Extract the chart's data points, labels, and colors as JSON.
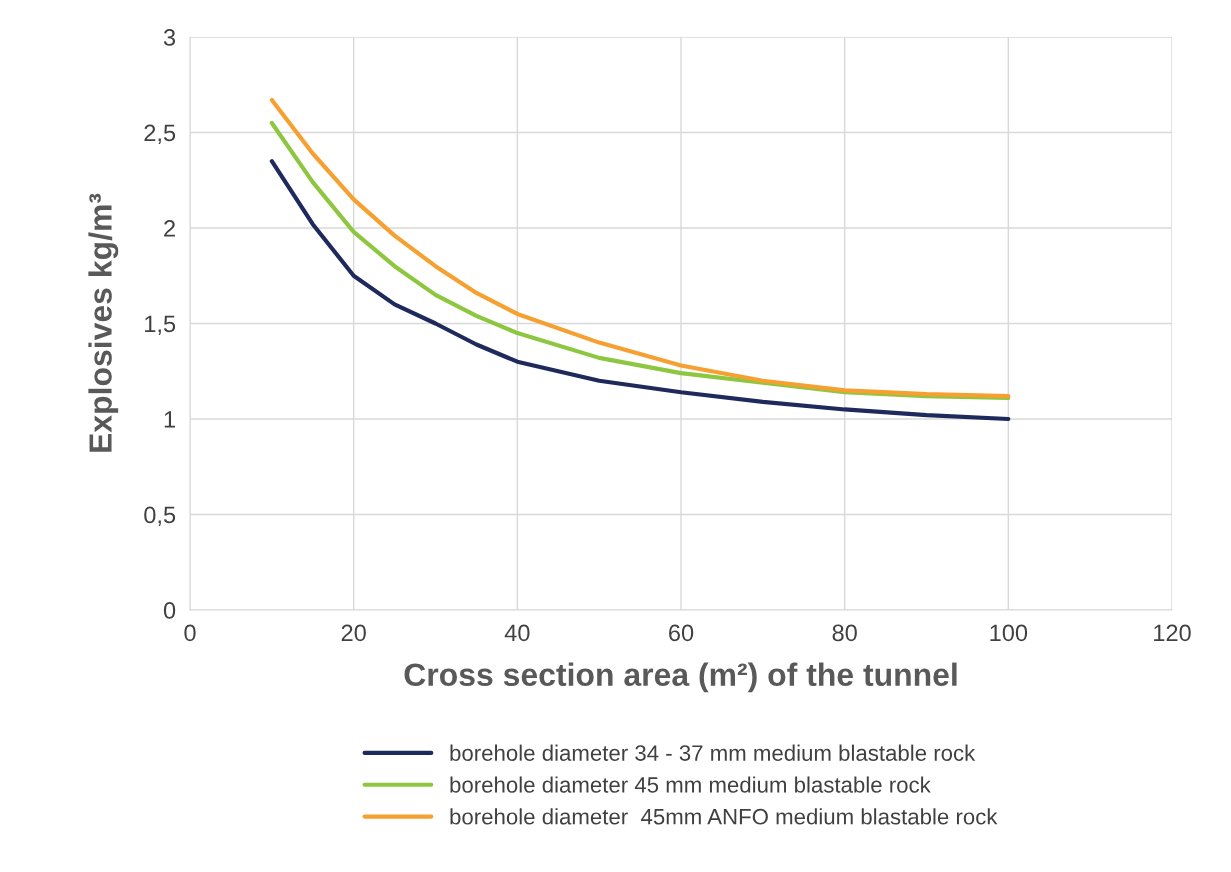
{
  "chart_data": {
    "type": "line",
    "xlabel": "Cross section area (m²) of the tunnel",
    "ylabel": "Explosives kg/m³",
    "x": [
      10,
      15,
      20,
      25,
      30,
      35,
      40,
      50,
      60,
      70,
      80,
      90,
      100
    ],
    "series": [
      {
        "name": "borehole diameter 34 - 37 mm medium blastable rock",
        "color": "#1f2a5c",
        "values": [
          2.35,
          2.02,
          1.75,
          1.6,
          1.5,
          1.39,
          1.3,
          1.2,
          1.14,
          1.09,
          1.05,
          1.02,
          1.0
        ]
      },
      {
        "name": "borehole diameter 45 mm medium blastable rock",
        "color": "#8dc63f",
        "values": [
          2.55,
          2.24,
          1.98,
          1.8,
          1.65,
          1.54,
          1.45,
          1.32,
          1.24,
          1.19,
          1.14,
          1.12,
          1.11
        ]
      },
      {
        "name": "borehole diameter  45mm ANFO medium blastable rock",
        "color": "#f5a030",
        "values": [
          2.67,
          2.39,
          2.15,
          1.96,
          1.8,
          1.66,
          1.55,
          1.4,
          1.28,
          1.2,
          1.15,
          1.13,
          1.12
        ]
      }
    ],
    "xlim": [
      0,
      120
    ],
    "xticks": [
      0,
      20,
      40,
      60,
      80,
      100,
      120
    ],
    "ylim": [
      0,
      3
    ],
    "yticks": [
      0,
      {
        "value": 0.5,
        "label": "0,5"
      },
      1,
      {
        "value": 1.5,
        "label": "1,5"
      },
      2,
      {
        "value": 2.5,
        "label": "2,5"
      },
      3
    ],
    "grid": true,
    "legend": "bottom",
    "marker": "none",
    "line_style": "solid"
  }
}
